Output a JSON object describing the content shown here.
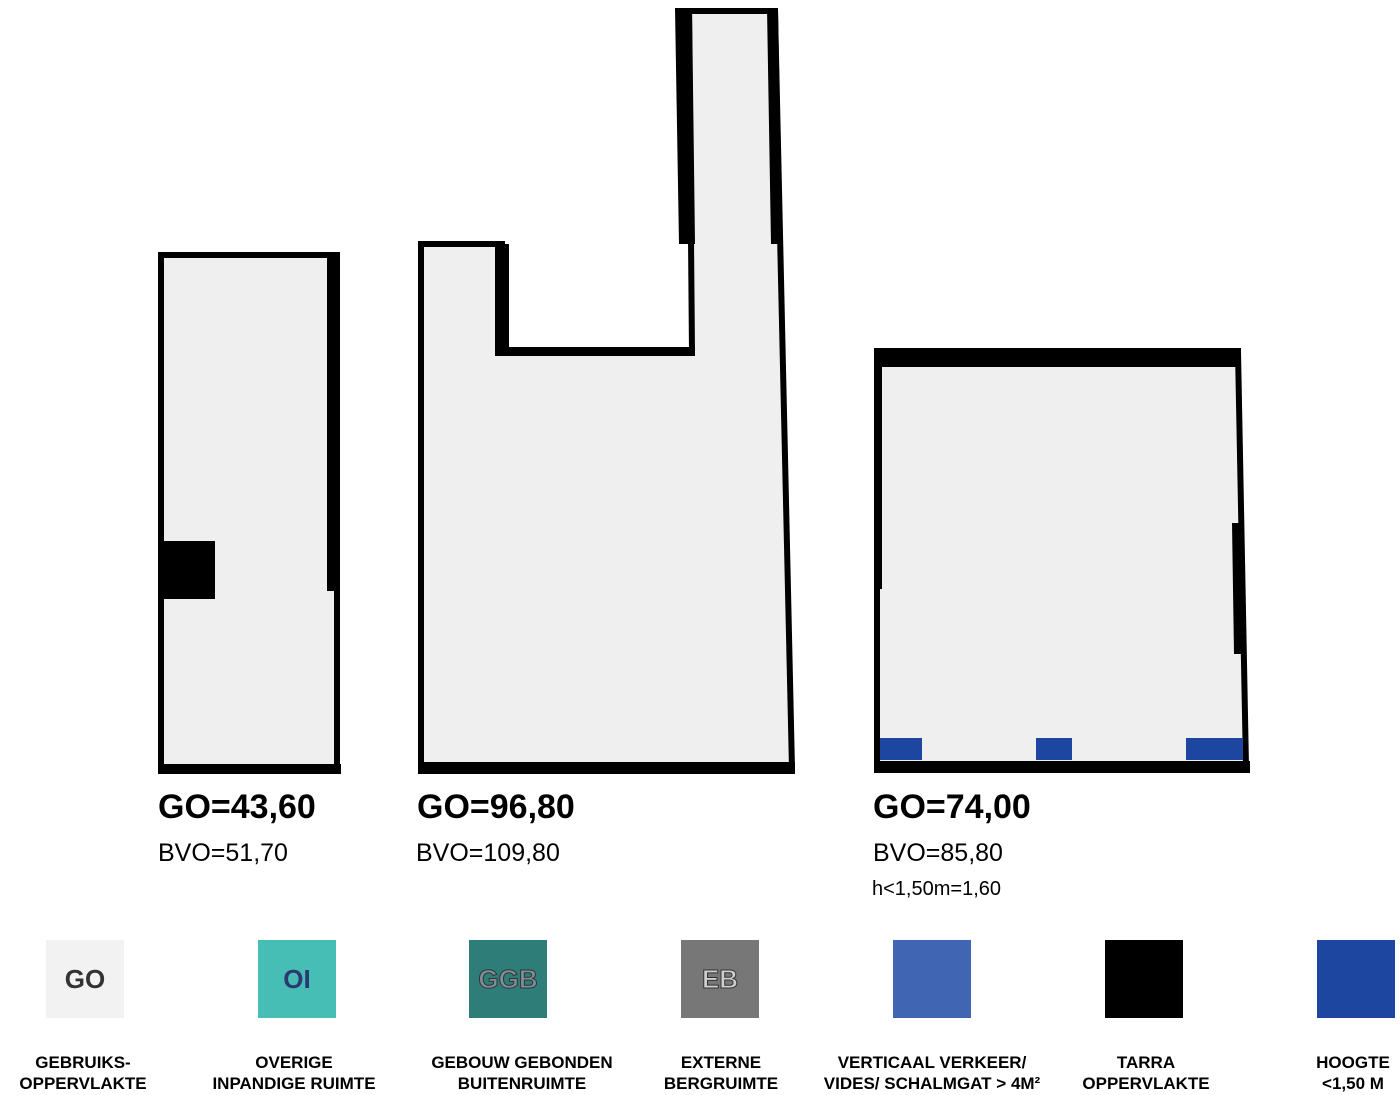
{
  "plans": [
    {
      "go": "GO=43,60",
      "bvo": "BVO=51,70",
      "extra": ""
    },
    {
      "go": "GO=96,80",
      "bvo": "BVO=109,80",
      "extra": ""
    },
    {
      "go": "GO=74,00",
      "bvo": "BVO=85,80",
      "extra": "h<1,50m=1,60"
    }
  ],
  "colors": {
    "go_fill": "#efefef",
    "wall": "#000000",
    "oi": "#46bdb5",
    "ggb": "#2e7d78",
    "eb": "#777777",
    "vertical": "#3f65b3",
    "tarra": "#000000",
    "hoogte": "#1c46a0"
  },
  "legend": [
    {
      "code": "GO",
      "color": "#f2f2f2",
      "text_color": "#333333",
      "label_line1": "GEBRUIKS-",
      "label_line2": "OPPERVLAKTE",
      "icon": "go-swatch"
    },
    {
      "code": "OI",
      "color": "#46bdb5",
      "text_color": "#2a3a70",
      "label_line1": "OVERIGE",
      "label_line2": "INPANDIGE RUIMTE",
      "icon": "oi-swatch"
    },
    {
      "code": "GGB",
      "color": "#2e7d78",
      "text_color": "#7d8f9a",
      "label_line1": "GEBOUW GEBONDEN",
      "label_line2": "BUITENRUIMTE",
      "icon": "ggb-swatch"
    },
    {
      "code": "EB",
      "color": "#777777",
      "text_color": "#cfcfcf",
      "label_line1": "EXTERNE",
      "label_line2": "BERGRUIMTE",
      "icon": "eb-swatch"
    },
    {
      "code": "",
      "color": "#3f65b3",
      "text_color": "#ffffff",
      "label_line1": "VERTICAAL VERKEER/",
      "label_line2": "VIDES/ SCHALMGAT > 4M²",
      "icon": "vertical-swatch"
    },
    {
      "code": "",
      "color": "#000000",
      "text_color": "#ffffff",
      "label_line1": "TARRA",
      "label_line2": "OPPERVLAKTE",
      "icon": "tarra-swatch"
    },
    {
      "code": "",
      "color": "#1c46a0",
      "text_color": "#ffffff",
      "label_line1": "HOOGTE",
      "label_line2": "<1,50 M",
      "icon": "hoogte-swatch"
    }
  ]
}
